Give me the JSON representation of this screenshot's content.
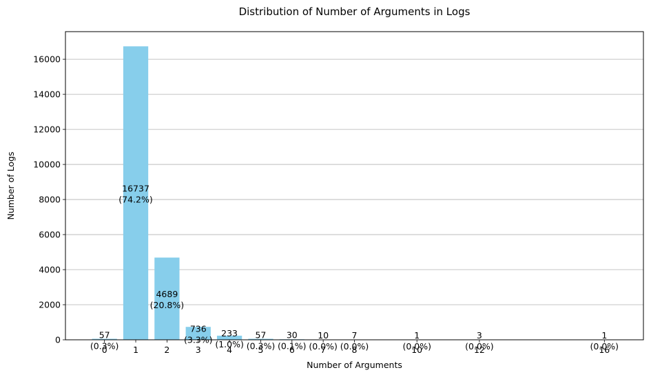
{
  "chart_data": {
    "type": "bar",
    "title": "Distribution of Number of Arguments in Logs",
    "xlabel": "Number of Arguments",
    "ylabel": "Number of Logs",
    "x": [
      0,
      1,
      2,
      3,
      4,
      5,
      6,
      7,
      8,
      10,
      12,
      16
    ],
    "values": [
      57,
      16737,
      4689,
      736,
      233,
      57,
      30,
      10,
      7,
      1,
      3,
      1
    ],
    "data_labels": [
      [
        "57",
        "(0.3%)"
      ],
      [
        "16737",
        "(74.2%)"
      ],
      [
        "4689",
        "(20.8%)"
      ],
      [
        "736",
        "(3.3%)"
      ],
      [
        "233",
        "(1.0%)"
      ],
      [
        "57",
        "(0.3%)"
      ],
      [
        "30",
        "(0.1%)"
      ],
      [
        "10",
        "(0.0%)"
      ],
      [
        "7",
        "(0.0%)"
      ],
      [
        "1",
        "(0.0%)"
      ],
      [
        "3",
        "(0.0%)"
      ],
      [
        "1",
        "(0.0%)"
      ]
    ],
    "xticks": [
      0,
      1,
      2,
      3,
      4,
      5,
      6,
      7,
      8,
      10,
      12,
      16
    ],
    "yticks": [
      0,
      2000,
      4000,
      6000,
      8000,
      10000,
      12000,
      14000,
      16000
    ],
    "xlim": [
      -1.25,
      17.25
    ],
    "ylim": [
      0,
      17574
    ],
    "grid": "y-only",
    "bar_color": "#87ceeb"
  }
}
